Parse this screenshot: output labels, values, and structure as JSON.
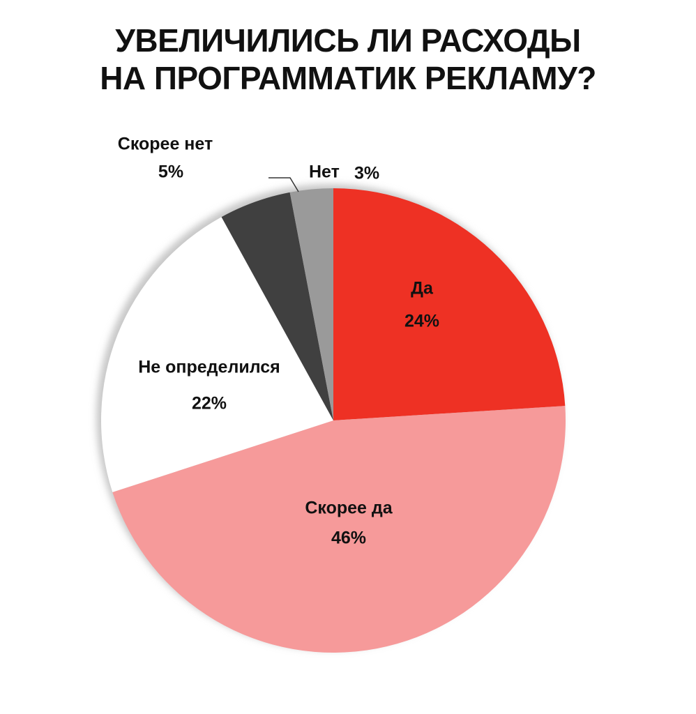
{
  "chart_data": {
    "type": "pie",
    "title": [
      "УВЕЛИЧИЛИСЬ ЛИ РАСХОДЫ",
      "НА ПРОГРАММАТИК РЕКЛАМУ?"
    ],
    "categories": [
      "Да",
      "Скорее да",
      "Не определился",
      "Скорее нет",
      "Нет"
    ],
    "values": [
      24,
      46,
      22,
      5,
      3
    ],
    "value_labels": [
      "24%",
      "46%",
      "22%",
      "5%",
      "3%"
    ],
    "colors": [
      "#ee3124",
      "#f69a9a",
      "#ffffff",
      "#404040",
      "#9a9a9a"
    ]
  }
}
